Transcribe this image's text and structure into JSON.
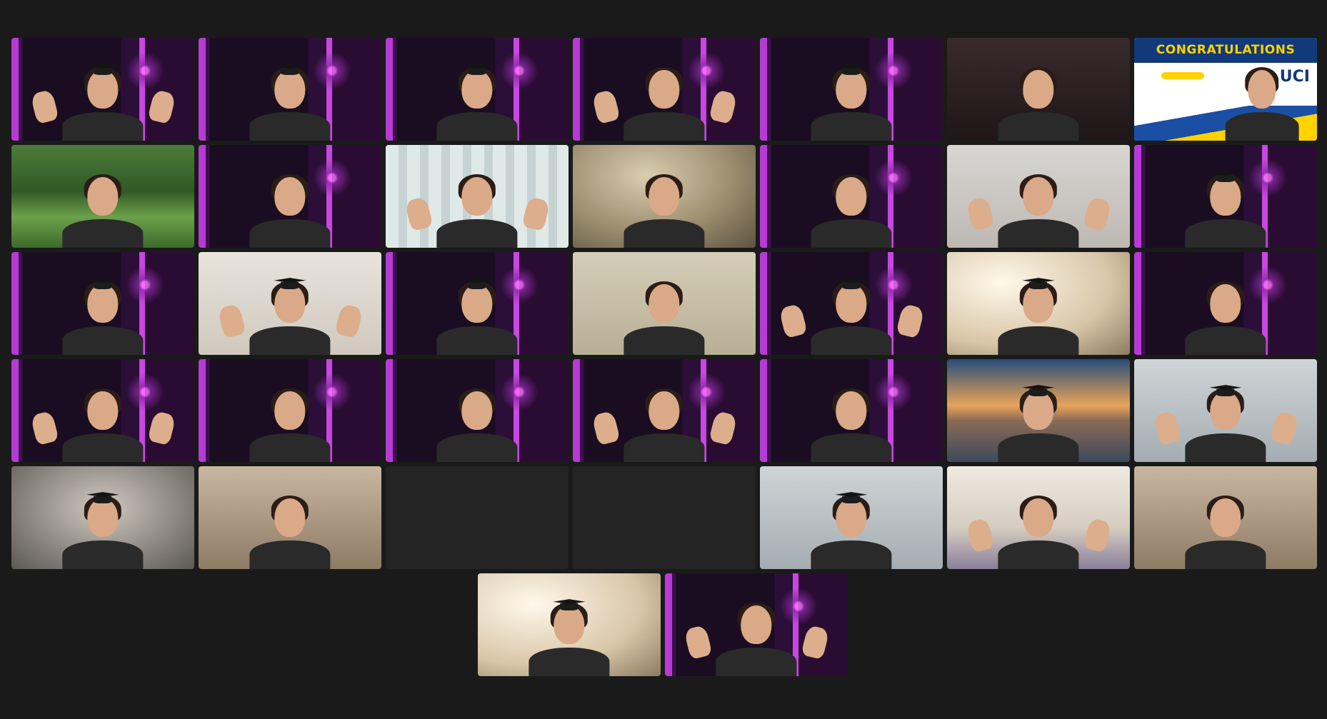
{
  "meeting": {
    "banner_text": "CONGRATULATIONS",
    "banner_logo": "UCI",
    "speaker_border_color": "#23d959"
  },
  "participants": [
    {
      "row": 1,
      "col": 1,
      "bg": "studio",
      "cap": true
    },
    {
      "row": 1,
      "col": 2,
      "bg": "studio",
      "cap": true
    },
    {
      "row": 1,
      "col": 3,
      "bg": "studio",
      "cap": true
    },
    {
      "row": 1,
      "col": 4,
      "bg": "studio",
      "cap": false
    },
    {
      "row": 1,
      "col": 5,
      "bg": "studio",
      "cap": true
    },
    {
      "row": 1,
      "col": 6,
      "bg": "dim",
      "cap": false
    },
    {
      "row": 1,
      "col": 7,
      "bg": "banner",
      "cap": false,
      "active_speaker": true
    },
    {
      "row": 2,
      "col": 1,
      "bg": "garden",
      "cap": false
    },
    {
      "row": 2,
      "col": 2,
      "bg": "studio",
      "cap": false
    },
    {
      "row": 2,
      "col": 3,
      "bg": "curtain",
      "cap": false
    },
    {
      "row": 2,
      "col": 4,
      "bg": "warm",
      "cap": false
    },
    {
      "row": 2,
      "col": 5,
      "bg": "studio",
      "cap": false
    },
    {
      "row": 2,
      "col": 6,
      "bg": "gray",
      "cap": false
    },
    {
      "row": 2,
      "col": 7,
      "bg": "studio",
      "cap": true
    },
    {
      "row": 3,
      "col": 1,
      "bg": "studio",
      "cap": true
    },
    {
      "row": 3,
      "col": 2,
      "bg": "wall",
      "cap": true
    },
    {
      "row": 3,
      "col": 3,
      "bg": "studio",
      "cap": true
    },
    {
      "row": 3,
      "col": 4,
      "bg": "beige",
      "cap": false
    },
    {
      "row": 3,
      "col": 5,
      "bg": "studio",
      "cap": true
    },
    {
      "row": 3,
      "col": 6,
      "bg": "bright",
      "cap": true
    },
    {
      "row": 3,
      "col": 7,
      "bg": "studio",
      "cap": false
    },
    {
      "row": 4,
      "col": 1,
      "bg": "studio",
      "cap": false
    },
    {
      "row": 4,
      "col": 2,
      "bg": "studio",
      "cap": false
    },
    {
      "row": 4,
      "col": 3,
      "bg": "studio",
      "cap": false
    },
    {
      "row": 4,
      "col": 4,
      "bg": "studio",
      "cap": false
    },
    {
      "row": 4,
      "col": 5,
      "bg": "studio",
      "cap": false
    },
    {
      "row": 4,
      "col": 6,
      "bg": "sunset",
      "cap": true
    },
    {
      "row": 4,
      "col": 7,
      "bg": "pale",
      "cap": true
    },
    {
      "row": 5,
      "col": 1,
      "bg": "blur",
      "cap": true
    },
    {
      "row": 5,
      "col": 2,
      "bg": "tan",
      "cap": false
    },
    {
      "row": 5,
      "col": 3,
      "bg": "empty",
      "cap": false
    },
    {
      "row": 5,
      "col": 4,
      "bg": "empty",
      "cap": false
    },
    {
      "row": 5,
      "col": 5,
      "bg": "pale",
      "cap": true
    },
    {
      "row": 5,
      "col": 6,
      "bg": "room",
      "cap": false
    },
    {
      "row": 5,
      "col": 7,
      "bg": "tan",
      "cap": false
    },
    {
      "row": 6,
      "col": 1,
      "bg": "bright",
      "cap": true
    },
    {
      "row": 6,
      "col": 2,
      "bg": "studio",
      "cap": false
    }
  ]
}
